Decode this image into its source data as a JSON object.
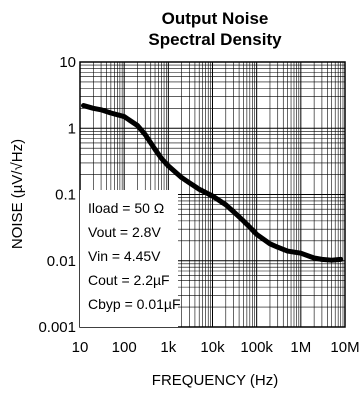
{
  "chart_data": {
    "type": "line",
    "title_line1": "Output Noise",
    "title_line2": "Spectral Density",
    "xlabel": "FREQUENCY (Hz)",
    "ylabel": "NOISE (µV/√Hz)",
    "x_scale": "log",
    "y_scale": "log",
    "xlim": [
      10,
      10000000
    ],
    "ylim": [
      0.001,
      10
    ],
    "grid": true,
    "x_ticks": [
      {
        "value": 10,
        "label": "10"
      },
      {
        "value": 100,
        "label": "100"
      },
      {
        "value": 1000,
        "label": "1k"
      },
      {
        "value": 10000,
        "label": "10k"
      },
      {
        "value": 100000,
        "label": "100k"
      },
      {
        "value": 1000000,
        "label": "1M"
      },
      {
        "value": 10000000,
        "label": "10M"
      }
    ],
    "y_ticks": [
      {
        "value": 10,
        "label": "10"
      },
      {
        "value": 1,
        "label": "1"
      },
      {
        "value": 0.1,
        "label": "0.1"
      },
      {
        "value": 0.01,
        "label": "0.01"
      },
      {
        "value": 0.001,
        "label": "0.001"
      }
    ],
    "annotations": [
      "Iload = 50 Ω",
      "Vout = 2.8V",
      "Vin = 4.45V",
      "Cout = 2.2µF",
      "Cbyp = 0.01µF"
    ],
    "series": [
      {
        "color": "#000000",
        "x": [
          12,
          20,
          30,
          50,
          100,
          200,
          300,
          500,
          700,
          1000,
          2000,
          3000,
          5000,
          10000,
          20000,
          30000,
          50000,
          70000,
          100000,
          200000,
          300000,
          500000,
          1000000,
          2000000,
          3000000,
          5000000,
          8000000
        ],
        "y": [
          2.2,
          2.0,
          1.9,
          1.7,
          1.5,
          1.1,
          0.8,
          0.48,
          0.35,
          0.27,
          0.18,
          0.15,
          0.12,
          0.095,
          0.07,
          0.055,
          0.04,
          0.032,
          0.025,
          0.018,
          0.016,
          0.014,
          0.013,
          0.011,
          0.0105,
          0.0102,
          0.0105
        ]
      }
    ]
  }
}
